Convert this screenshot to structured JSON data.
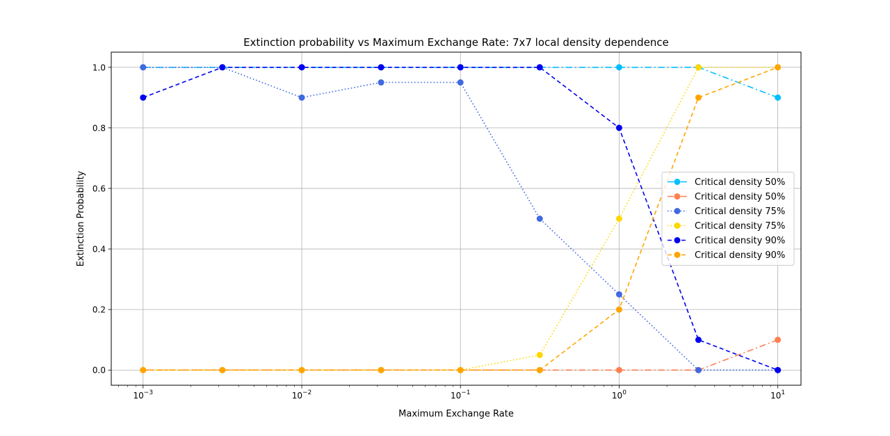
{
  "chart_data": {
    "type": "line",
    "title": "Extinction probability vs Maximum Exchange Rate: 7x7 local density dependence",
    "xlabel": "Maximum Exchange Rate",
    "ylabel": "Extinction Probability",
    "xscale": "log",
    "xlim": [
      0.00063,
      14.0
    ],
    "ylim": [
      -0.05,
      1.05
    ],
    "grid": true,
    "legend_position": "center-right",
    "x": [
      0.001,
      0.00316,
      0.01,
      0.0316,
      0.1,
      0.316,
      1,
      3.16,
      10
    ],
    "xticks": [
      {
        "value": 0.001,
        "base": "10",
        "exp": "−3"
      },
      {
        "value": 0.01,
        "base": "10",
        "exp": "−2"
      },
      {
        "value": 0.1,
        "base": "10",
        "exp": "−1"
      },
      {
        "value": 1,
        "base": "10",
        "exp": "0"
      },
      {
        "value": 10,
        "base": "10",
        "exp": "1"
      }
    ],
    "yticks": [
      {
        "value": 0.0,
        "label": "0.0"
      },
      {
        "value": 0.2,
        "label": "0.2"
      },
      {
        "value": 0.4,
        "label": "0.4"
      },
      {
        "value": 0.6,
        "label": "0.6"
      },
      {
        "value": 0.8,
        "label": "0.8"
      },
      {
        "value": 1.0,
        "label": "1.0"
      }
    ],
    "series": [
      {
        "name": "Critical density 50%",
        "color": "#00bfff",
        "linestyle": "dashdot",
        "values": [
          1.0,
          1.0,
          1.0,
          1.0,
          1.0,
          1.0,
          1.0,
          1.0,
          0.9
        ]
      },
      {
        "name": "Critical density 50%",
        "color": "#ff7f50",
        "linestyle": "dashdot",
        "values": [
          0.0,
          0.0,
          0.0,
          0.0,
          0.0,
          0.0,
          0.0,
          0.0,
          0.1
        ]
      },
      {
        "name": "Critical density 75%",
        "color": "#4169e1",
        "linestyle": "dotted",
        "values": [
          1.0,
          1.0,
          0.9,
          0.95,
          0.95,
          0.5,
          0.25,
          0.0,
          0.0
        ]
      },
      {
        "name": "Critical density 75%",
        "color": "#ffd700",
        "linestyle": "dotted",
        "values": [
          0.0,
          0.0,
          0.0,
          0.0,
          0.0,
          0.05,
          0.5,
          1.0,
          1.0
        ]
      },
      {
        "name": "Critical density 90%",
        "color": "#0000ee",
        "linestyle": "dashed",
        "values": [
          0.9,
          1.0,
          1.0,
          1.0,
          1.0,
          1.0,
          0.8,
          0.1,
          0.0
        ]
      },
      {
        "name": "Critical density 90%",
        "color": "#ffa500",
        "linestyle": "dashed",
        "values": [
          0.0,
          0.0,
          0.0,
          0.0,
          0.0,
          0.0,
          0.2,
          0.9,
          1.0
        ]
      }
    ]
  }
}
